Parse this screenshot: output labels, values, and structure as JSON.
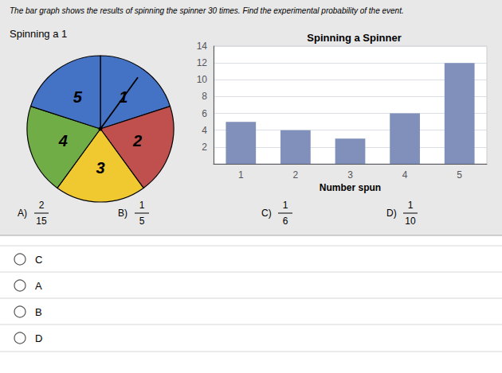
{
  "chart_data": [
    {
      "type": "pie",
      "categories": [
        "1",
        "2",
        "3",
        "4",
        "5"
      ],
      "values": [
        72,
        72,
        72,
        72,
        72
      ],
      "colors": [
        "#4472c4",
        "#c0504d",
        "#f0c830",
        "#70ad47",
        "#4472c4"
      ]
    },
    {
      "type": "bar",
      "title": "Spinning a Spinner",
      "xlabel": "Number spun",
      "categories": [
        "1",
        "2",
        "3",
        "4",
        "5"
      ],
      "values": [
        5,
        4,
        3,
        6,
        12
      ],
      "color": "#8090bb",
      "ylim": [
        0,
        14
      ],
      "yticks": [
        2,
        4,
        6,
        8,
        10,
        12,
        14
      ],
      "grid": true
    }
  ],
  "annotations": {
    "header": "The bar graph shows the results of spinning the spinner 30 times. Find the experimental probability of the event.",
    "subheader": "Spinning a 1",
    "choices": [
      {
        "label": "A)",
        "fraction": [
          "2",
          "15"
        ]
      },
      {
        "label": "B)",
        "fraction": [
          "1",
          "5"
        ]
      },
      {
        "label": "C)",
        "fraction": [
          "1",
          "6"
        ]
      },
      {
        "label": "D)",
        "fraction": [
          "1",
          "10"
        ]
      }
    ],
    "options": [
      "C",
      "A",
      "B",
      "D"
    ]
  }
}
